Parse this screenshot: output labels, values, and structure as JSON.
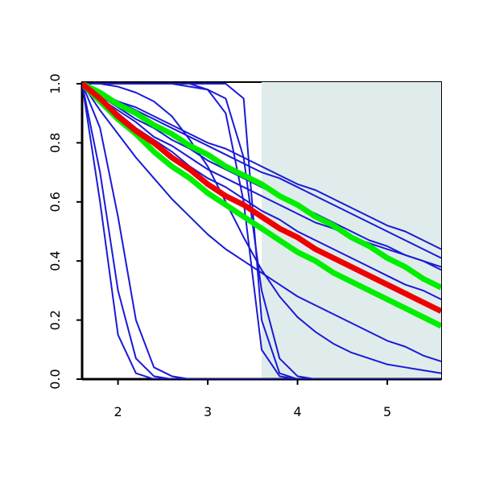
{
  "chart_data": {
    "type": "line",
    "x": [
      1.6,
      1.8,
      2.0,
      2.2,
      2.4,
      2.6,
      2.8,
      3.0,
      3.2,
      3.4,
      3.6,
      3.8,
      4.0,
      4.2,
      4.4,
      4.6,
      4.8,
      5.0,
      5.2,
      5.4,
      5.6
    ],
    "xlim": [
      1.6,
      5.6
    ],
    "xticks": [
      2,
      3,
      4,
      5
    ],
    "ylim": [
      0,
      1
    ],
    "yticks": [
      {
        "value": 0,
        "label": "0.0"
      },
      {
        "value": 0.2,
        "label": "0.2"
      },
      {
        "value": 0.4,
        "label": "0.4"
      },
      {
        "value": 0.6,
        "label": "0.6"
      },
      {
        "value": 0.8,
        "label": "0.8"
      },
      {
        "value": 1,
        "label": "1.0"
      }
    ],
    "shade": [
      3.6,
      5.6
    ],
    "shade_color": "#e0ecec",
    "series": [
      {
        "color": "#1a1ad6",
        "values": [
          1,
          0.97,
          0.94,
          0.92,
          0.89,
          0.86,
          0.83,
          0.8,
          0.78,
          0.75,
          0.72,
          0.69,
          0.66,
          0.64,
          0.61,
          0.58,
          0.55,
          0.52,
          0.5,
          0.47,
          0.44
        ]
      },
      {
        "color": "#1a1ad6",
        "values": [
          1,
          0.97,
          0.94,
          0.91,
          0.88,
          0.85,
          0.82,
          0.79,
          0.76,
          0.73,
          0.7,
          0.68,
          0.65,
          0.62,
          0.59,
          0.56,
          0.53,
          0.5,
          0.47,
          0.44,
          0.41
        ]
      },
      {
        "color": "#1a1ad6",
        "values": [
          1,
          0.96,
          0.92,
          0.88,
          0.85,
          0.81,
          0.78,
          0.74,
          0.71,
          0.68,
          0.65,
          0.62,
          0.59,
          0.56,
          0.53,
          0.5,
          0.47,
          0.45,
          0.42,
          0.4,
          0.37
        ]
      },
      {
        "color": "#1a1ad6",
        "values": [
          1,
          0.95,
          0.91,
          0.87,
          0.82,
          0.79,
          0.75,
          0.71,
          0.68,
          0.65,
          0.62,
          0.59,
          0.56,
          0.53,
          0.51,
          0.48,
          0.46,
          0.44,
          0.42,
          0.4,
          0.38
        ]
      },
      {
        "color": "#1a1ad6",
        "values": [
          1,
          0.95,
          0.9,
          0.85,
          0.81,
          0.77,
          0.72,
          0.68,
          0.65,
          0.61,
          0.57,
          0.54,
          0.5,
          0.47,
          0.44,
          0.41,
          0.38,
          0.35,
          0.32,
          0.3,
          0.27
        ]
      },
      {
        "color": "#1a1ad6",
        "values": [
          1,
          0.91,
          0.83,
          0.75,
          0.68,
          0.61,
          0.55,
          0.49,
          0.44,
          0.4,
          0.36,
          0.32,
          0.28,
          0.25,
          0.22,
          0.19,
          0.16,
          0.13,
          0.11,
          0.08,
          0.06
        ]
      },
      {
        "color": "#1a1ad6",
        "values": [
          1,
          1,
          0.99,
          0.97,
          0.94,
          0.89,
          0.81,
          0.72,
          0.6,
          0.48,
          0.37,
          0.28,
          0.21,
          0.16,
          0.12,
          0.09,
          0.07,
          0.05,
          0.04,
          0.03,
          0.02
        ]
      },
      {
        "color": "#1a1ad6",
        "values": [
          1,
          1,
          1,
          1,
          1,
          1,
          1,
          1,
          1,
          0.95,
          0.2,
          0.02,
          0,
          0,
          0,
          0,
          0,
          0,
          0,
          0,
          0
        ]
      },
      {
        "color": "#1a1ad6",
        "values": [
          1,
          1,
          1,
          1,
          1,
          1,
          1,
          0.98,
          0.9,
          0.6,
          0.1,
          0.01,
          0,
          0,
          0,
          0,
          0,
          0,
          0,
          0,
          0
        ]
      },
      {
        "color": "#1a1ad6",
        "values": [
          1,
          1,
          1,
          1,
          1,
          1,
          0.99,
          0.98,
          0.95,
          0.75,
          0.3,
          0.07,
          0.01,
          0,
          0,
          0,
          0,
          0,
          0,
          0,
          0
        ]
      },
      {
        "color": "#1a1ad6",
        "values": [
          1,
          0.7,
          0.3,
          0.07,
          0.01,
          0,
          0,
          0,
          0,
          0,
          0,
          0,
          0,
          0,
          0,
          0,
          0,
          0,
          0,
          0,
          0
        ]
      },
      {
        "color": "#1a1ad6",
        "values": [
          1,
          0.85,
          0.55,
          0.2,
          0.04,
          0.01,
          0,
          0,
          0,
          0,
          0,
          0,
          0,
          0,
          0,
          0,
          0,
          0,
          0,
          0,
          0
        ]
      },
      {
        "color": "#1a1ad6",
        "values": [
          1,
          0.6,
          0.15,
          0.02,
          0,
          0,
          0,
          0,
          0,
          0,
          0,
          0,
          0,
          0,
          0,
          0,
          0,
          0,
          0,
          0,
          0
        ]
      },
      {
        "color": "#00ee00",
        "values": [
          1,
          0.97,
          0.93,
          0.9,
          0.86,
          0.83,
          0.79,
          0.76,
          0.72,
          0.69,
          0.66,
          0.62,
          0.59,
          0.55,
          0.52,
          0.48,
          0.45,
          0.41,
          0.38,
          0.34,
          0.31
        ]
      },
      {
        "color": "#00ee00",
        "values": [
          1,
          0.94,
          0.88,
          0.83,
          0.77,
          0.72,
          0.68,
          0.63,
          0.59,
          0.55,
          0.51,
          0.47,
          0.43,
          0.4,
          0.36,
          0.33,
          0.3,
          0.27,
          0.24,
          0.21,
          0.18
        ]
      },
      {
        "color": "#ee0000",
        "values": [
          1,
          0.95,
          0.89,
          0.84,
          0.8,
          0.75,
          0.71,
          0.66,
          0.62,
          0.59,
          0.55,
          0.51,
          0.48,
          0.44,
          0.41,
          0.38,
          0.35,
          0.32,
          0.29,
          0.26,
          0.23
        ]
      }
    ]
  }
}
